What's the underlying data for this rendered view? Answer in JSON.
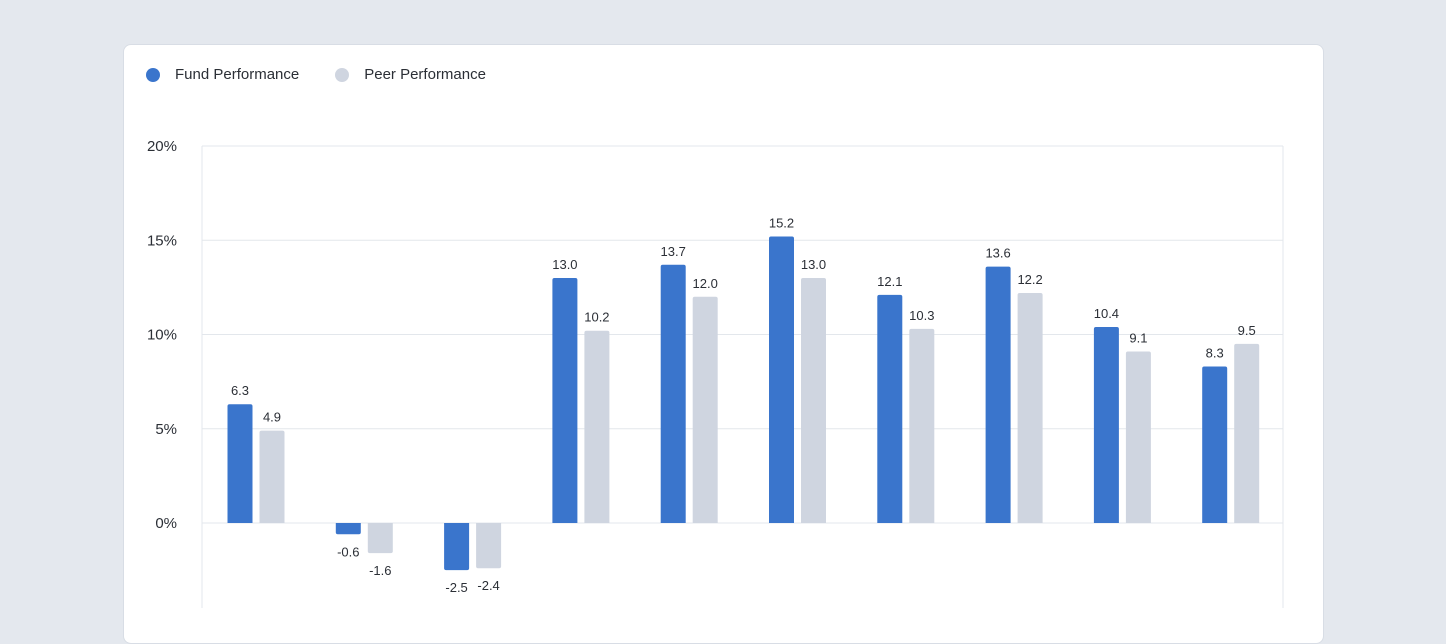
{
  "chart_data": {
    "type": "bar",
    "categories": [
      "",
      "",
      "",
      "",
      "",
      "",
      "",
      "",
      "",
      ""
    ],
    "series": [
      {
        "name": "Fund Performance",
        "color": "#3a75cc",
        "values": [
          6.3,
          -0.6,
          -2.5,
          13.0,
          13.7,
          15.2,
          12.1,
          13.6,
          10.4,
          8.3
        ],
        "labels": [
          "6.3",
          "-0.6",
          "-2.5",
          "13.0",
          "13.7",
          "15.2",
          "12.1",
          "13.6",
          "10.4",
          "8.3"
        ]
      },
      {
        "name": "Peer Performance",
        "color": "#cfd5e0",
        "values": [
          4.9,
          -1.6,
          -2.4,
          10.2,
          12.0,
          13.0,
          10.3,
          12.2,
          9.1,
          9.5
        ],
        "labels": [
          "4.9",
          "-1.6",
          "-2.4",
          "10.2",
          "12.0",
          "13.0",
          "10.3",
          "12.2",
          "9.1",
          "9.5"
        ]
      }
    ],
    "yticks": [
      0,
      5,
      10,
      15,
      20
    ],
    "ytick_labels": [
      "0%",
      "5%",
      "10%",
      "15%",
      "20%"
    ],
    "ylim": [
      -4.3,
      20
    ],
    "grid": true,
    "legend_position": "top-left",
    "title": "",
    "xlabel": "",
    "ylabel": ""
  }
}
